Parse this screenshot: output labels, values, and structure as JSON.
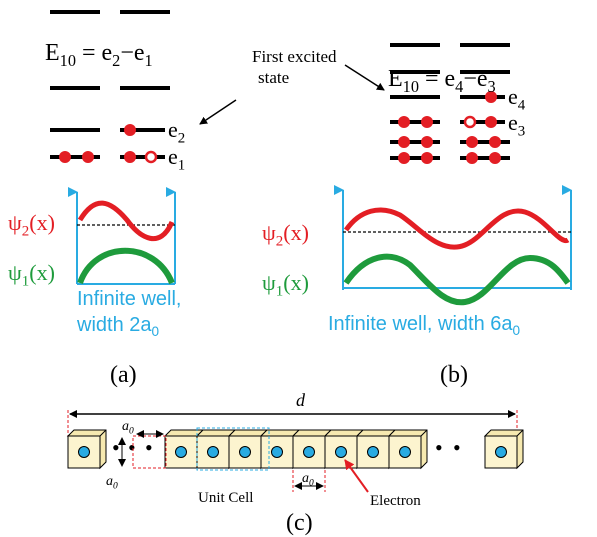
{
  "annotation": [
    "First excited",
    "state"
  ],
  "panel_a": {
    "energy_label": [
      "E",
      "10",
      " = e",
      "2",
      "−e",
      "1"
    ],
    "level_upper": [
      "e",
      "2"
    ],
    "level_lower": [
      "e",
      "1"
    ],
    "psi2": [
      "ψ",
      "2",
      "(x)"
    ],
    "psi1": [
      "ψ",
      "1",
      "(x)"
    ],
    "well_line1": [
      "Infinite well,"
    ],
    "well_line2": [
      "width 2a",
      "0"
    ],
    "caption": "(a)"
  },
  "panel_b": {
    "energy_label": [
      "E",
      "10",
      " = e",
      "4",
      "−e",
      "3"
    ],
    "level_upper": [
      "e",
      "4"
    ],
    "level_lower": [
      "e",
      "3"
    ],
    "psi2": [
      "ψ",
      "2",
      "(x)"
    ],
    "psi1": [
      "ψ",
      "1",
      "(x)"
    ],
    "well_label": [
      "Infinite well, width 6a",
      "0"
    ],
    "caption": "(b)"
  },
  "panel_c": {
    "length": "d",
    "cell_top": [
      "a",
      "0"
    ],
    "cell_side": [
      "a",
      "0"
    ],
    "cell_bottom": [
      "a",
      "0"
    ],
    "unit_cell": "Unit Cell",
    "electron": "Electron",
    "caption": "(c)"
  }
}
